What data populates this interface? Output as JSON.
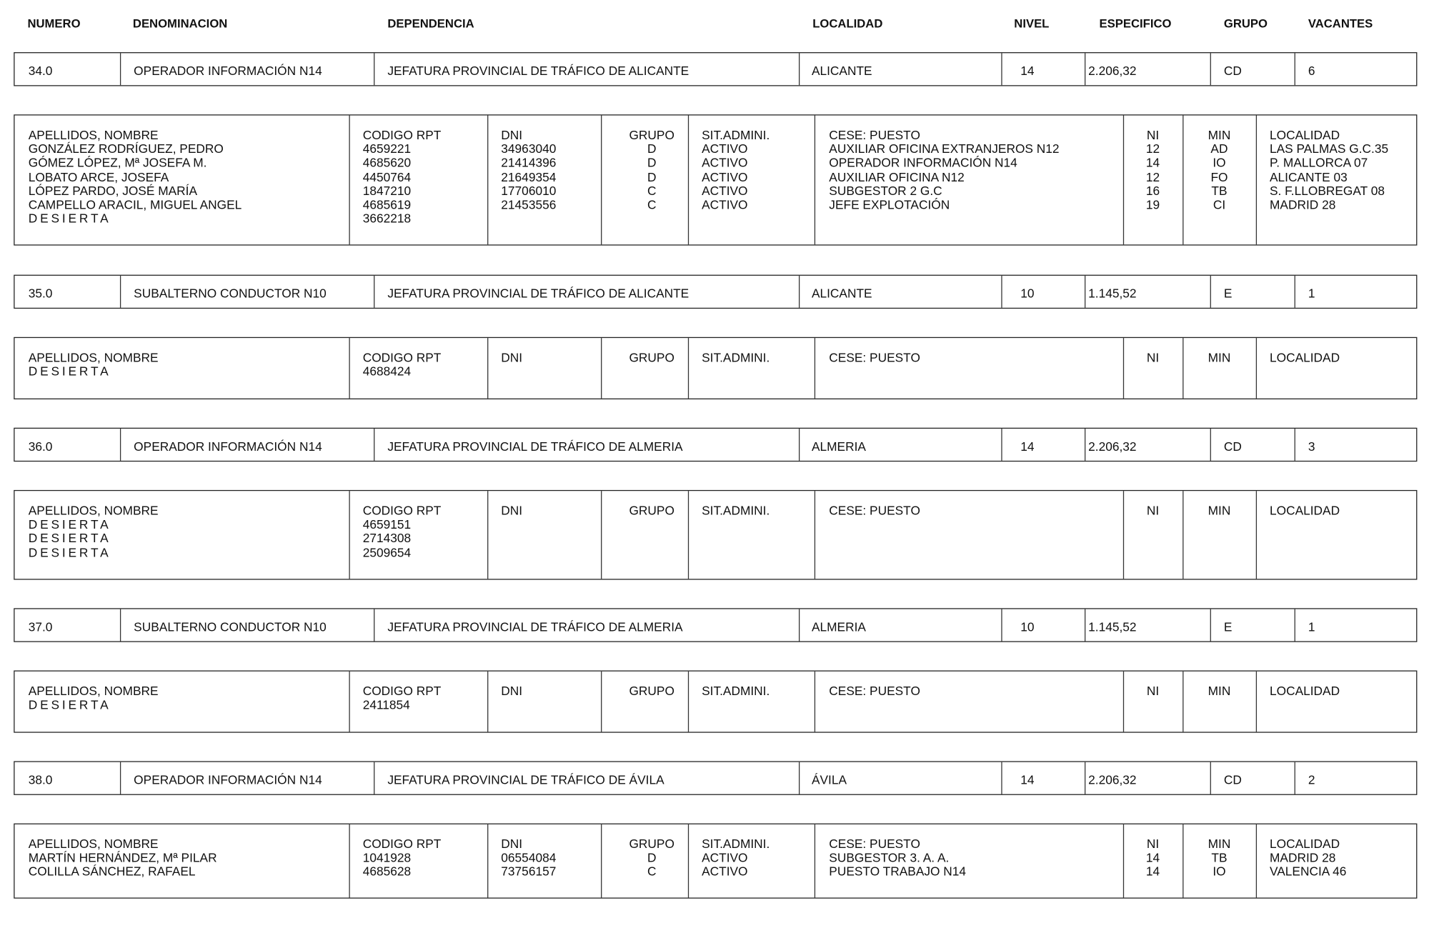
{
  "headers": {
    "numero": "NUMERO",
    "denominacion": "DENOMINACION",
    "dependencia": "DEPENDENCIA",
    "localidad": "LOCALIDAD",
    "nivel": "NIVEL",
    "especifico": "ESPECIFICO",
    "grupo": "GRUPO",
    "vacantes": "VACANTES"
  },
  "detail_headers": {
    "nombre": "APELLIDOS, NOMBRE",
    "codigo": "CODIGO RPT",
    "dni": "DNI",
    "grupo": "GRUPO",
    "sit": "SIT.ADMINI.",
    "cese": "CESE: PUESTO",
    "ni": "NI",
    "min": "MIN",
    "localidad": "LOCALIDAD"
  },
  "positions": [
    {
      "summary": {
        "numero": "34.0",
        "denominacion": "OPERADOR INFORMACIÓN N14",
        "dependencia": "JEFATURA PROVINCIAL DE TRÁFICO DE ALICANTE",
        "localidad": "ALICANTE",
        "nivel": "14",
        "especifico": "2.206,32",
        "grupo": "CD",
        "vacantes": "6"
      },
      "rows": [
        {
          "nombre": "GONZÁLEZ RODRÍGUEZ, PEDRO",
          "codigo": "4659221",
          "dni": "34963040",
          "grupo": "D",
          "sit": "ACTIVO",
          "cese": "AUXILIAR OFICINA EXTRANJEROS N12",
          "ni": "12",
          "min": "AD",
          "localidad": "LAS PALMAS G.C.35"
        },
        {
          "nombre": "GÓMEZ LÓPEZ, Mª JOSEFA M.",
          "codigo": "4685620",
          "dni": "21414396",
          "grupo": "D",
          "sit": "ACTIVO",
          "cese": "OPERADOR INFORMACIÓN N14",
          "ni": "14",
          "min": "IO",
          "localidad": "P. MALLORCA 07"
        },
        {
          "nombre": "LOBATO ARCE, JOSEFA",
          "codigo": "4450764",
          "dni": "21649354",
          "grupo": "D",
          "sit": "ACTIVO",
          "cese": "AUXILIAR OFICINA N12",
          "ni": "12",
          "min": "FO",
          "localidad": "ALICANTE 03"
        },
        {
          "nombre": "LÓPEZ PARDO, JOSÉ MARÍA",
          "codigo": "1847210",
          "dni": "17706010",
          "grupo": "C",
          "sit": "ACTIVO",
          "cese": "SUBGESTOR 2 G.C",
          "ni": "16",
          "min": "TB",
          "localidad": "S. F.LLOBREGAT 08"
        },
        {
          "nombre": "CAMPELLO ARACIL, MIGUEL ANGEL",
          "codigo": "4685619",
          "dni": "21453556",
          "grupo": "C",
          "sit": "ACTIVO",
          "cese": "JEFE EXPLOTACIÓN",
          "ni": "19",
          "min": "CI",
          "localidad": "MADRID 28"
        },
        {
          "nombre": "DESIERTA",
          "codigo": "3662218"
        }
      ]
    },
    {
      "summary": {
        "numero": "35.0",
        "denominacion": "SUBALTERNO CONDUCTOR N10",
        "dependencia": "JEFATURA PROVINCIAL DE TRÁFICO DE ALICANTE",
        "localidad": "ALICANTE",
        "nivel": "10",
        "especifico": "1.145,52",
        "grupo": "E",
        "vacantes": "1"
      },
      "rows": [
        {
          "nombre": "DESIERTA",
          "codigo": "4688424"
        }
      ]
    },
    {
      "summary": {
        "numero": "36.0",
        "denominacion": "OPERADOR INFORMACIÓN N14",
        "dependencia": "JEFATURA PROVINCIAL DE TRÁFICO DE ALMERIA",
        "localidad": "ALMERIA",
        "nivel": "14",
        "especifico": "2.206,32",
        "grupo": "CD",
        "vacantes": "3"
      },
      "rows": [
        {
          "nombre": "DESIERTA",
          "codigo": "4659151"
        },
        {
          "nombre": "DESIERTA",
          "codigo": "2714308"
        },
        {
          "nombre": "DESIERTA",
          "codigo": "2509654"
        }
      ]
    },
    {
      "summary": {
        "numero": "37.0",
        "denominacion": "SUBALTERNO CONDUCTOR N10",
        "dependencia": "JEFATURA PROVINCIAL DE TRÁFICO DE ALMERIA",
        "localidad": "ALMERIA",
        "nivel": "10",
        "especifico": "1.145,52",
        "grupo": "E",
        "vacantes": "1"
      },
      "rows": [
        {
          "nombre": "DESIERTA",
          "codigo": "2411854"
        }
      ]
    },
    {
      "summary": {
        "numero": "38.0",
        "denominacion": "OPERADOR INFORMACIÓN N14",
        "dependencia": "JEFATURA PROVINCIAL DE TRÁFICO DE ÁVILA",
        "localidad": "ÁVILA",
        "nivel": "14",
        "especifico": "2.206,32",
        "grupo": "CD",
        "vacantes": "2"
      },
      "rows": [
        {
          "nombre": "MARTÍN HERNÁNDEZ, Mª PILAR",
          "codigo": "1041928",
          "dni": "06554084",
          "grupo": "D",
          "sit": "ACTIVO",
          "cese": "SUBGESTOR 3. A. A.",
          "ni": "14",
          "min": "TB",
          "localidad": "MADRID 28"
        },
        {
          "nombre": "COLILLA SÁNCHEZ, RAFAEL",
          "codigo": "4685628",
          "dni": "73756157",
          "grupo": "C",
          "sit": "ACTIVO",
          "cese": "PUESTO TRABAJO N14",
          "ni": "14",
          "min": "IO",
          "localidad": "VALENCIA 46"
        }
      ]
    }
  ]
}
